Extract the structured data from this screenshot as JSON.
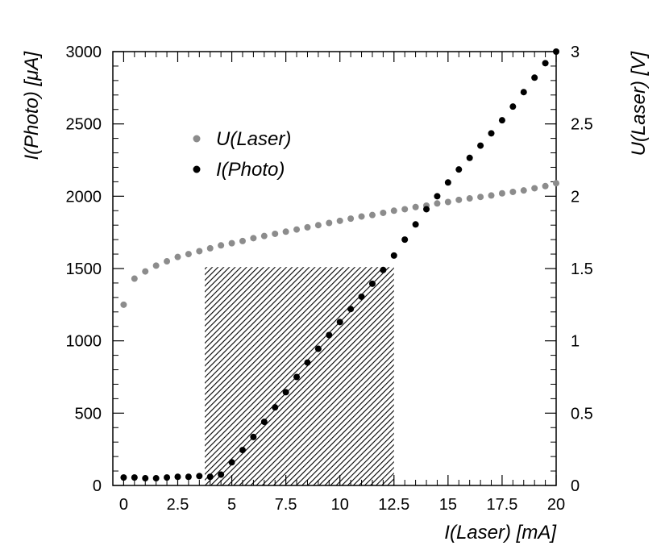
{
  "chart_data": {
    "type": "scatter",
    "title": "",
    "xlabel": "I(Laser) [mA]",
    "ylabel_left": "I(Photo) [μA]",
    "ylabel_right": "U(Laser) [V]",
    "xlim": [
      -0.5,
      20
    ],
    "ylim_left": [
      0,
      3000
    ],
    "ylim_right": [
      0,
      3
    ],
    "x_ticks": [
      0,
      2.5,
      5,
      7.5,
      10,
      12.5,
      15,
      17.5,
      20
    ],
    "x_tick_labels": [
      "0",
      "2.5",
      "5",
      "7.5",
      "10",
      "12.5",
      "15",
      "17.5",
      "20"
    ],
    "y_left_ticks": [
      0,
      500,
      1000,
      1500,
      2000,
      2500,
      3000
    ],
    "y_left_tick_labels": [
      "0",
      "500",
      "1000",
      "1500",
      "2000",
      "2500",
      "3000"
    ],
    "y_right_ticks": [
      0,
      0.5,
      1,
      1.5,
      2,
      2.5,
      3
    ],
    "y_right_tick_labels": [
      "0",
      "0.5",
      "1",
      "1.5",
      "2",
      "2.5",
      "3"
    ],
    "grid": false,
    "legend_position": "upper-left",
    "shaded_region": {
      "x": [
        3.75,
        12.5
      ],
      "y_left": [
        0,
        1510
      ]
    },
    "series": [
      {
        "name": "U(Laser)",
        "axis": "right",
        "color": "#8c8c8c",
        "x": [
          0,
          0.5,
          1,
          1.5,
          2,
          2.5,
          3,
          3.5,
          4,
          4.5,
          5,
          5.5,
          6,
          6.5,
          7,
          7.5,
          8,
          8.5,
          9,
          9.5,
          10,
          10.5,
          11,
          11.5,
          12,
          12.5,
          13,
          13.5,
          14,
          14.5,
          15,
          15.5,
          16,
          16.5,
          17,
          17.5,
          18,
          18.5,
          19,
          19.5,
          20
        ],
        "y": [
          1.25,
          1.43,
          1.48,
          1.52,
          1.55,
          1.58,
          1.6,
          1.62,
          1.64,
          1.66,
          1.675,
          1.69,
          1.71,
          1.725,
          1.74,
          1.755,
          1.77,
          1.785,
          1.8,
          1.815,
          1.83,
          1.845,
          1.86,
          1.87,
          1.885,
          1.9,
          1.91,
          1.925,
          1.935,
          1.95,
          1.96,
          1.975,
          1.985,
          1.995,
          2.005,
          2.02,
          2.03,
          2.04,
          2.055,
          2.07,
          2.09
        ]
      },
      {
        "name": "I(Photo)",
        "axis": "left",
        "color": "#000000",
        "x": [
          0,
          0.5,
          1,
          1.5,
          2,
          2.5,
          3,
          3.5,
          4,
          4.5,
          5,
          5.5,
          6,
          6.5,
          7,
          7.5,
          8,
          8.5,
          9,
          9.5,
          10,
          10.5,
          11,
          11.5,
          12,
          12.5,
          13,
          13.5,
          14,
          14.5,
          15,
          15.5,
          16,
          16.5,
          17,
          17.5,
          18,
          18.5,
          19,
          19.5,
          20
        ],
        "y": [
          55,
          55,
          50,
          50,
          55,
          60,
          60,
          65,
          60,
          75,
          160,
          245,
          335,
          440,
          540,
          645,
          750,
          850,
          945,
          1040,
          1130,
          1220,
          1305,
          1395,
          1490,
          1590,
          1700,
          1805,
          1910,
          2000,
          2095,
          2185,
          2265,
          2350,
          2435,
          2525,
          2620,
          2720,
          2820,
          2920,
          3000
        ]
      }
    ]
  }
}
